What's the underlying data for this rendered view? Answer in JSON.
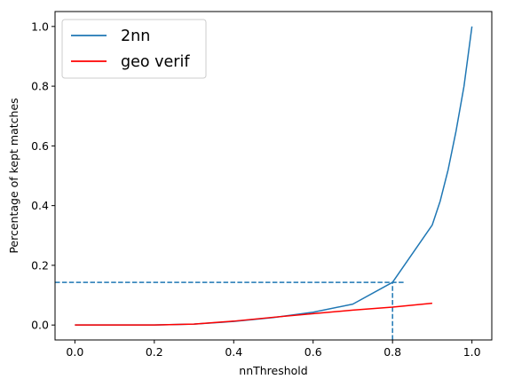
{
  "chart_data": {
    "type": "line",
    "xlabel": "nnThreshold",
    "ylabel": "Percentage of kept matches",
    "xlim": [
      -0.05,
      1.05
    ],
    "ylim": [
      -0.05,
      1.05
    ],
    "xticks": [
      0.0,
      0.2,
      0.4,
      0.6,
      0.8,
      1.0
    ],
    "xtick_labels": [
      "0.0",
      "0.2",
      "0.4",
      "0.6",
      "0.8",
      "1.0"
    ],
    "yticks": [
      0.0,
      0.2,
      0.4,
      0.6,
      0.8,
      1.0
    ],
    "ytick_labels": [
      "0.0",
      "0.2",
      "0.4",
      "0.6",
      "0.8",
      "1.0"
    ],
    "grid": false,
    "legend": {
      "placement": "top-left"
    },
    "series": [
      {
        "name": "2nn",
        "color": "#1f77b4",
        "style": "solid",
        "x": [
          0.0,
          0.1,
          0.2,
          0.3,
          0.4,
          0.5,
          0.6,
          0.7,
          0.8,
          0.9,
          0.92,
          0.94,
          0.96,
          0.98,
          1.0
        ],
        "y": [
          0.0,
          0.0,
          0.0,
          0.003,
          0.012,
          0.025,
          0.043,
          0.07,
          0.143,
          0.335,
          0.415,
          0.52,
          0.65,
          0.8,
          1.0
        ]
      },
      {
        "name": "geo verif",
        "color": "#ff0000",
        "style": "solid",
        "x": [
          0.0,
          0.1,
          0.2,
          0.3,
          0.4,
          0.5,
          0.6,
          0.7,
          0.8,
          0.9
        ],
        "y": [
          0.0,
          0.0,
          0.0,
          0.003,
          0.013,
          0.026,
          0.038,
          0.05,
          0.06,
          0.073
        ]
      }
    ],
    "reference_lines": {
      "color": "#1f77b4",
      "style": "dashed",
      "horizontal_y": 0.143,
      "horizontal_x_range": [
        -0.05,
        0.83
      ],
      "vertical_x": 0.8,
      "vertical_y_range": [
        -0.05,
        0.143
      ]
    }
  }
}
